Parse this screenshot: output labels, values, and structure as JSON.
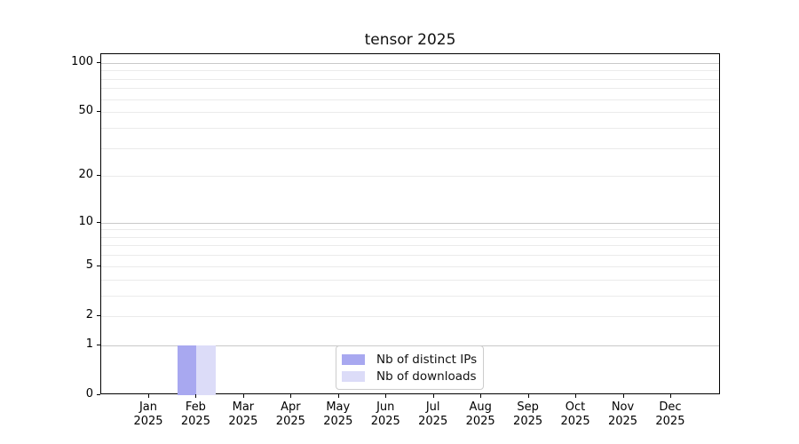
{
  "chart_data": {
    "type": "bar",
    "title": "tensor 2025",
    "categories": [
      "Jan",
      "Feb",
      "Mar",
      "Apr",
      "May",
      "Jun",
      "Jul",
      "Aug",
      "Sep",
      "Oct",
      "Nov",
      "Dec"
    ],
    "category_year": "2025",
    "series": [
      {
        "name": "Nb of distinct IPs",
        "color": "#a8a8f0",
        "values": [
          0,
          1,
          0,
          0,
          0,
          0,
          0,
          0,
          0,
          0,
          0,
          0
        ]
      },
      {
        "name": "Nb of downloads",
        "color": "#dcdcf8",
        "values": [
          0,
          1,
          0,
          0,
          0,
          0,
          0,
          0,
          0,
          0,
          0,
          0
        ]
      }
    ],
    "y_axis": {
      "scale": "log10(value+1)",
      "labeled_ticks": [
        0,
        1,
        2,
        5,
        10,
        20,
        50,
        100
      ],
      "major_gridlines": [
        1,
        10,
        100
      ],
      "minor_gridlines": [
        2,
        3,
        4,
        5,
        6,
        7,
        8,
        9,
        20,
        30,
        40,
        50,
        60,
        70,
        80,
        90
      ],
      "ylim": [
        0,
        113
      ]
    },
    "legend": {
      "position": "lower center"
    },
    "grid": true,
    "colors": {
      "major_grid": "#c9c9c9",
      "minor_grid": "#ebebeb",
      "spine": "#000000",
      "text": "#000000",
      "legend_border": "#cccccc"
    }
  }
}
